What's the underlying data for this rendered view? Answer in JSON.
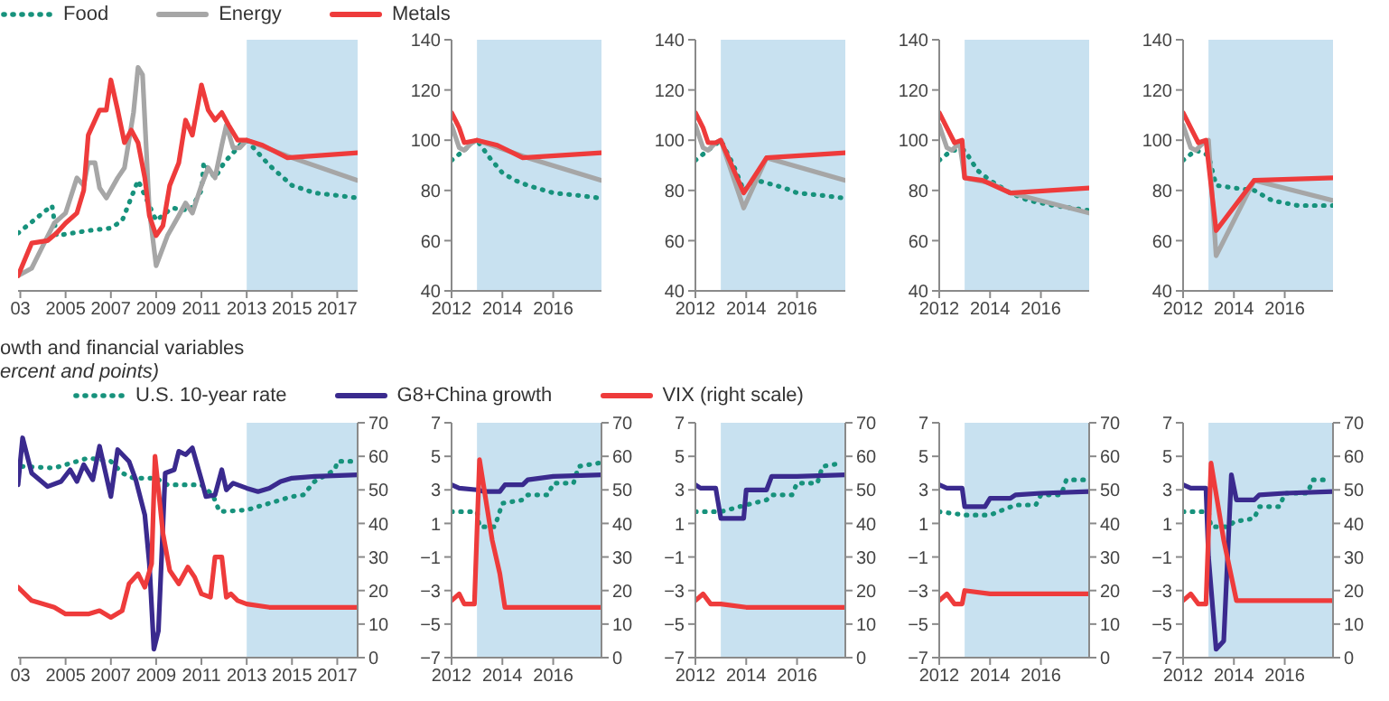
{
  "chart_data": [
    {
      "type": "line",
      "legend": "top",
      "marker": "none",
      "tick_labels": "x",
      "xlim": [
        2002.9,
        2017.9
      ],
      "xticks": [
        {
          "value": 2003,
          "label": "03"
        },
        2005,
        2007,
        2009,
        2011,
        2013,
        2015,
        2017
      ],
      "ylim": [
        40,
        140
      ],
      "bands": [
        {
          "axis": "x",
          "from": 2013,
          "to": 2017.9,
          "color": "#c8e1f0"
        }
      ],
      "series": [
        {
          "name": "Food",
          "color": "#17927c",
          "line_style": "dotted",
          "x": [
            2002.9,
            2004.4,
            2004.6,
            2006,
            2007,
            2007.5,
            2008.2,
            2009,
            2009.7,
            2010.5,
            2011,
            2011.1,
            2011.6,
            2012,
            2012.8,
            2013,
            2014,
            2015,
            2016,
            2017,
            2017.9
          ],
          "values": [
            63,
            74,
            62,
            64,
            65,
            68,
            84,
            68,
            73,
            72,
            80,
            91,
            85,
            91,
            99,
            100,
            90,
            82,
            79,
            78,
            77
          ]
        },
        {
          "name": "Energy",
          "color": "#a6a6a6",
          "line_style": "solid",
          "x": [
            2002.9,
            2003.5,
            2004,
            2004.5,
            2005,
            2005.5,
            2005.8,
            2006,
            2006.3,
            2006.5,
            2006.8,
            2007.3,
            2007.6,
            2008,
            2008.2,
            2008.4,
            2008.7,
            2009,
            2009.5,
            2010,
            2010.3,
            2010.6,
            2011,
            2011.3,
            2011.6,
            2011.9,
            2012.1,
            2012.4,
            2012.7,
            2013,
            2015,
            2017.9
          ],
          "values": [
            46,
            49,
            58,
            67,
            71,
            85,
            82,
            91,
            91,
            81,
            77,
            85,
            89,
            111,
            129,
            126,
            72,
            50,
            62,
            70,
            75,
            71,
            82,
            89,
            85,
            98,
            106,
            97,
            97,
            100,
            93,
            84
          ]
        },
        {
          "name": "Metals",
          "color": "#ee3b3b",
          "line_style": "solid",
          "x": [
            2002.9,
            2003.5,
            2004.2,
            2004.6,
            2005,
            2005.5,
            2005.8,
            2006,
            2006.5,
            2006.8,
            2007,
            2007.3,
            2007.6,
            2007.9,
            2008.2,
            2008.5,
            2008.7,
            2009,
            2009.3,
            2009.6,
            2010,
            2010.3,
            2010.6,
            2011,
            2011.3,
            2011.6,
            2011.9,
            2012.2,
            2012.6,
            2013,
            2013.7,
            2014.8,
            2017.9
          ],
          "values": [
            46,
            59,
            60,
            63,
            67,
            71,
            80,
            102,
            112,
            112,
            124,
            112,
            99,
            104,
            99,
            85,
            70,
            62,
            66,
            82,
            91,
            108,
            102,
            122,
            112,
            108,
            111,
            106,
            100,
            100,
            98,
            93,
            95
          ]
        }
      ]
    },
    {
      "type": "line",
      "marker": "none",
      "xlim": [
        2012,
        2017.9
      ],
      "xticks": [
        2012,
        2014,
        2016
      ],
      "ylim": [
        40,
        140
      ],
      "yticks": [
        40,
        60,
        80,
        100,
        120,
        140
      ],
      "bands": [
        {
          "axis": "x",
          "from": 2013,
          "to": 2017.9,
          "color": "#c8e1f0"
        }
      ],
      "series": [
        {
          "color": "#17927c",
          "line_style": "dotted",
          "x": [
            2012,
            2012.5,
            2012.8,
            2013,
            2013.5,
            2014,
            2014.5,
            2015,
            2016,
            2017,
            2017.8
          ],
          "values": [
            92,
            96,
            99,
            100,
            93,
            87,
            84,
            82,
            79,
            78,
            77
          ]
        },
        {
          "color": "#a6a6a6",
          "line_style": "solid",
          "x": [
            2012,
            2012.3,
            2012.5,
            2012.8,
            2013,
            2015,
            2017.9
          ],
          "values": [
            106,
            97,
            96,
            99,
            100,
            93,
            84
          ]
        },
        {
          "color": "#ee3b3b",
          "line_style": "solid",
          "x": [
            2012,
            2012.3,
            2012.5,
            2013,
            2013.8,
            2014.8,
            2017.9
          ],
          "values": [
            111,
            105,
            99,
            100,
            98,
            93,
            95
          ]
        }
      ]
    },
    {
      "type": "line",
      "marker": "none",
      "xlim": [
        2012,
        2017.9
      ],
      "xticks": [
        2012,
        2014,
        2016
      ],
      "ylim": [
        40,
        140
      ],
      "yticks": [
        40,
        60,
        80,
        100,
        120,
        140
      ],
      "bands": [
        {
          "axis": "x",
          "from": 2013,
          "to": 2017.9,
          "color": "#c8e1f0"
        }
      ],
      "series": [
        {
          "color": "#17927c",
          "line_style": "dotted",
          "x": [
            2012,
            2012.5,
            2013,
            2013.5,
            2013.9,
            2014.4,
            2014.8,
            2015.5,
            2016,
            2017,
            2017.8
          ],
          "values": [
            92,
            96,
            100,
            90,
            80,
            84,
            83,
            81,
            79,
            78,
            77
          ]
        },
        {
          "color": "#a6a6a6",
          "line_style": "solid",
          "x": [
            2012,
            2012.3,
            2012.5,
            2012.8,
            2013,
            2013.9,
            2014.8,
            2017.9
          ],
          "values": [
            106,
            97,
            96,
            99,
            100,
            73,
            93,
            84
          ]
        },
        {
          "color": "#ee3b3b",
          "line_style": "solid",
          "x": [
            2012,
            2012.3,
            2012.5,
            2012.8,
            2013,
            2013.9,
            2014.8,
            2017.9
          ],
          "values": [
            111,
            105,
            99,
            99,
            100,
            79,
            93,
            95
          ]
        }
      ]
    },
    {
      "type": "line",
      "marker": "none",
      "xlim": [
        2012,
        2017.9
      ],
      "xticks": [
        2012,
        2014,
        2016
      ],
      "ylim": [
        40,
        140
      ],
      "yticks": [
        40,
        60,
        80,
        100,
        120,
        140
      ],
      "bands": [
        {
          "axis": "x",
          "from": 2013,
          "to": 2017.9,
          "color": "#c8e1f0"
        }
      ],
      "series": [
        {
          "color": "#17927c",
          "line_style": "dotted",
          "x": [
            2012,
            2012.5,
            2013,
            2013.5,
            2014,
            2014.8,
            2015.5,
            2016.5,
            2017.9
          ],
          "values": [
            92,
            96,
            96,
            88,
            84,
            79,
            76,
            74,
            72
          ]
        },
        {
          "color": "#a6a6a6",
          "line_style": "solid",
          "x": [
            2012,
            2012.3,
            2012.5,
            2012.8,
            2013,
            2014,
            2014.8,
            2017.9
          ],
          "values": [
            106,
            97,
            96,
            99,
            85,
            83,
            79,
            71
          ]
        },
        {
          "color": "#ee3b3b",
          "line_style": "solid",
          "x": [
            2012,
            2012.3,
            2012.6,
            2012.9,
            2013,
            2013.7,
            2014.8,
            2017.9
          ],
          "values": [
            111,
            105,
            99,
            100,
            85,
            84,
            79,
            81
          ]
        }
      ]
    },
    {
      "type": "line",
      "marker": "none",
      "xlim": [
        2012,
        2017.9
      ],
      "xticks": [
        2012,
        2014,
        2016
      ],
      "ylim": [
        40,
        140
      ],
      "yticks": [
        40,
        60,
        80,
        100,
        120,
        140
      ],
      "bands": [
        {
          "axis": "x",
          "from": 2013,
          "to": 2017.9,
          "color": "#c8e1f0"
        }
      ],
      "series": [
        {
          "color": "#17927c",
          "line_style": "dotted",
          "x": [
            2012,
            2012.5,
            2013,
            2013.3,
            2014,
            2014.8,
            2015.5,
            2016.5,
            2017.9
          ],
          "values": [
            92,
            96,
            94,
            82,
            81,
            80,
            76,
            74,
            74
          ]
        },
        {
          "color": "#a6a6a6",
          "line_style": "solid",
          "x": [
            2012,
            2012.3,
            2012.5,
            2012.8,
            2013,
            2013.3,
            2014.8,
            2017.9
          ],
          "values": [
            106,
            97,
            96,
            99,
            100,
            54,
            84,
            76
          ]
        },
        {
          "color": "#ee3b3b",
          "line_style": "solid",
          "x": [
            2012,
            2012.3,
            2012.6,
            2012.9,
            2013.3,
            2014.8,
            2017.9
          ],
          "values": [
            111,
            105,
            99,
            100,
            64,
            84,
            85
          ]
        }
      ]
    },
    {
      "type": "line",
      "title": "owth and financial variables",
      "subtitle": "ercent and points)",
      "legend": "top",
      "marker": "none",
      "tick_labels": [
        "x",
        "y2"
      ],
      "xlim": [
        2002.9,
        2017.9
      ],
      "xticks": [
        {
          "value": 2003,
          "label": "03"
        },
        2005,
        2007,
        2009,
        2011,
        2013,
        2015,
        2017
      ],
      "ylim": [
        -7,
        7
      ],
      "y2lim": [
        0,
        70
      ],
      "y2ticks": [
        0,
        10,
        20,
        30,
        40,
        50,
        60,
        70
      ],
      "bands": [
        {
          "axis": "x",
          "from": 2013,
          "to": 2017.9,
          "color": "#c8e1f0"
        }
      ],
      "series": [
        {
          "name": "U.S. 10-year rate",
          "color": "#17927c",
          "line_style": "dotted",
          "x": [
            2002.9,
            2003,
            2004.5,
            2006,
            2007,
            2007.5,
            2008,
            2009,
            2009.5,
            2011,
            2011.5,
            2011.8,
            2013,
            2014,
            2015,
            2015.5,
            2016,
            2016.9,
            2017,
            2017.8
          ],
          "values": [
            4.0,
            4.4,
            4.3,
            4.9,
            4.7,
            4.0,
            3.7,
            3.7,
            3.3,
            3.3,
            2.7,
            1.7,
            1.8,
            2.2,
            2.6,
            2.7,
            3.5,
            4.2,
            4.7,
            4.7
          ]
        },
        {
          "name": "G8+China growth",
          "color": "#3a2a8e",
          "line_style": "solid",
          "x": [
            2002.9,
            2003.1,
            2003.5,
            2004.2,
            2004.8,
            2005.2,
            2005.5,
            2005.8,
            2006.2,
            2006.5,
            2007,
            2007.3,
            2007.8,
            2008.1,
            2008.5,
            2008.7,
            2008.9,
            2009.1,
            2009.4,
            2009.8,
            2010,
            2010.3,
            2010.6,
            2011,
            2011.2,
            2011.6,
            2011.9,
            2012.1,
            2012.4,
            2013,
            2013.5,
            2014,
            2014.5,
            2015,
            2016,
            2017.9
          ],
          "values": [
            3.3,
            6.1,
            4.0,
            3.2,
            3.5,
            4.2,
            3.5,
            4.5,
            3.6,
            5.6,
            2.6,
            5.4,
            4.7,
            3.6,
            1.5,
            -1.4,
            -6.5,
            -5.4,
            4.0,
            4.2,
            5.3,
            5.1,
            5.5,
            3.6,
            2.6,
            2.7,
            4.2,
            3.0,
            3.4,
            3.1,
            2.9,
            3.1,
            3.5,
            3.7,
            3.8,
            3.9
          ]
        },
        {
          "name": "VIX (right scale)",
          "color": "#ee3b3b",
          "line_style": "solid",
          "axis": "y2",
          "x": [
            2002.9,
            2003.5,
            2004.5,
            2005,
            2006,
            2006.5,
            2007,
            2007.5,
            2007.8,
            2008.2,
            2008.5,
            2008.8,
            2008.95,
            2009.3,
            2009.6,
            2010,
            2010.4,
            2010.7,
            2011,
            2011.4,
            2011.6,
            2011.9,
            2012.1,
            2012.3,
            2012.6,
            2013,
            2014,
            2017.9
          ],
          "values": [
            21,
            17,
            15,
            13,
            13,
            14,
            12,
            14,
            22,
            25,
            21,
            28,
            60,
            37,
            26,
            22,
            27,
            24,
            19,
            18,
            30,
            30,
            18,
            19,
            17,
            16,
            15,
            15
          ]
        }
      ]
    },
    {
      "type": "line",
      "marker": "none",
      "xlim": [
        2012,
        2017.9
      ],
      "xticks": [
        2012,
        2014,
        2016
      ],
      "ylim": [
        -7,
        7
      ],
      "yticks": [
        {
          "value": -7,
          "label": "−7"
        },
        {
          "value": -5,
          "label": "−5"
        },
        {
          "value": -3,
          "label": "−3"
        },
        {
          "value": -1,
          "label": "−1"
        },
        1,
        3,
        5,
        7
      ],
      "y2lim": [
        0,
        70
      ],
      "y2ticks": [
        0,
        10,
        20,
        30,
        40,
        50,
        60,
        70
      ],
      "bands": [
        {
          "axis": "x",
          "from": 2013,
          "to": 2017.9,
          "color": "#c8e1f0"
        }
      ],
      "series": [
        {
          "color": "#17927c",
          "line_style": "dotted",
          "x": [
            2012,
            2013,
            2013.1,
            2013.7,
            2014,
            2014.8,
            2015,
            2015.8,
            2016,
            2016.8,
            2017,
            2017.8
          ],
          "values": [
            1.7,
            1.7,
            0.8,
            0.8,
            2.2,
            2.4,
            2.7,
            2.7,
            3.4,
            3.4,
            4.4,
            4.6
          ]
        },
        {
          "color": "#3a2a8e",
          "line_style": "solid",
          "x": [
            2012,
            2012.3,
            2013,
            2013.3,
            2013.9,
            2014.1,
            2014.8,
            2015,
            2016,
            2017.9
          ],
          "values": [
            3.3,
            3.1,
            3.0,
            2.9,
            2.9,
            3.3,
            3.3,
            3.6,
            3.8,
            3.9
          ]
        },
        {
          "color": "#ee3b3b",
          "line_style": "solid",
          "axis": "y2",
          "x": [
            2012,
            2012.3,
            2012.5,
            2012.9,
            2013.1,
            2013.6,
            2013.9,
            2014.1,
            2017.9
          ],
          "values": [
            17,
            19,
            16,
            16,
            59,
            35,
            25,
            15,
            15
          ]
        }
      ]
    },
    {
      "type": "line",
      "marker": "none",
      "xlim": [
        2012,
        2017.9
      ],
      "xticks": [
        2012,
        2014,
        2016
      ],
      "ylim": [
        -7,
        7
      ],
      "yticks": [
        {
          "value": -7,
          "label": "−7"
        },
        {
          "value": -5,
          "label": "−5"
        },
        {
          "value": -3,
          "label": "−3"
        },
        {
          "value": -1,
          "label": "−1"
        },
        1,
        3,
        5,
        7
      ],
      "y2lim": [
        0,
        70
      ],
      "y2ticks": [
        0,
        10,
        20,
        30,
        40,
        50,
        60,
        70
      ],
      "bands": [
        {
          "axis": "x",
          "from": 2013,
          "to": 2017.9,
          "color": "#c8e1f0"
        }
      ],
      "series": [
        {
          "color": "#17927c",
          "line_style": "dotted",
          "x": [
            2012,
            2013,
            2014,
            2014.8,
            2015,
            2015.8,
            2016,
            2016.8,
            2017,
            2017.8
          ],
          "values": [
            1.7,
            1.7,
            2.1,
            2.4,
            2.7,
            2.7,
            3.4,
            3.4,
            4.4,
            4.6
          ]
        },
        {
          "color": "#3a2a8e",
          "line_style": "solid",
          "x": [
            2012,
            2012.2,
            2012.8,
            2013,
            2013.9,
            2014,
            2014.8,
            2015,
            2016,
            2017.9
          ],
          "values": [
            3.3,
            3.1,
            3.1,
            1.3,
            1.3,
            3.0,
            3.0,
            3.8,
            3.8,
            3.9
          ]
        },
        {
          "color": "#ee3b3b",
          "line_style": "solid",
          "axis": "y2",
          "x": [
            2012,
            2012.3,
            2012.6,
            2013,
            2014,
            2017.9
          ],
          "values": [
            17,
            19,
            16,
            16,
            15,
            15
          ]
        }
      ]
    },
    {
      "type": "line",
      "marker": "none",
      "xlim": [
        2012,
        2017.9
      ],
      "xticks": [
        2012,
        2014,
        2016
      ],
      "ylim": [
        -7,
        7
      ],
      "yticks": [
        {
          "value": -7,
          "label": "−7"
        },
        {
          "value": -5,
          "label": "−5"
        },
        {
          "value": -3,
          "label": "−3"
        },
        {
          "value": -1,
          "label": "−1"
        },
        1,
        3,
        5,
        7
      ],
      "y2lim": [
        0,
        70
      ],
      "y2ticks": [
        0,
        10,
        20,
        30,
        40,
        50,
        60,
        70
      ],
      "bands": [
        {
          "axis": "x",
          "from": 2013,
          "to": 2017.9,
          "color": "#c8e1f0"
        }
      ],
      "series": [
        {
          "color": "#17927c",
          "line_style": "dotted",
          "x": [
            2012,
            2013,
            2014,
            2014.5,
            2015,
            2015.8,
            2016,
            2016.8,
            2017,
            2017.8
          ],
          "values": [
            1.7,
            1.5,
            1.5,
            1.8,
            2.1,
            2.1,
            2.7,
            2.7,
            3.6,
            3.6
          ]
        },
        {
          "color": "#3a2a8e",
          "line_style": "solid",
          "x": [
            2012,
            2012.3,
            2012.9,
            2013,
            2013.8,
            2014,
            2014.8,
            2015,
            2016,
            2017.9
          ],
          "values": [
            3.3,
            3.1,
            3.1,
            2.0,
            2.0,
            2.5,
            2.5,
            2.7,
            2.8,
            2.9
          ]
        },
        {
          "color": "#ee3b3b",
          "line_style": "solid",
          "axis": "y2",
          "x": [
            2012,
            2012.3,
            2012.6,
            2012.9,
            2013,
            2014,
            2017.9
          ],
          "values": [
            17,
            19,
            16,
            16,
            20,
            19,
            19
          ]
        }
      ]
    },
    {
      "type": "line",
      "marker": "none",
      "xlim": [
        2012,
        2017.9
      ],
      "xticks": [
        2012,
        2014,
        2016
      ],
      "ylim": [
        -7,
        7
      ],
      "yticks": [
        {
          "value": -7,
          "label": "−7"
        },
        {
          "value": -5,
          "label": "−5"
        },
        {
          "value": -3,
          "label": "−3"
        },
        {
          "value": -1,
          "label": "−1"
        },
        1,
        3,
        5,
        7
      ],
      "y2lim": [
        0,
        70
      ],
      "y2ticks": [
        0,
        10,
        20,
        30,
        40,
        50,
        60,
        70
      ],
      "bands": [
        {
          "axis": "x",
          "from": 2013,
          "to": 2017.9,
          "color": "#c8e1f0"
        }
      ],
      "series": [
        {
          "color": "#17927c",
          "line_style": "dotted",
          "x": [
            2012,
            2013,
            2013.1,
            2013.8,
            2014,
            2014.8,
            2015,
            2015.8,
            2016,
            2016.9,
            2017.1,
            2017.8
          ],
          "values": [
            1.7,
            1.7,
            0.8,
            0.8,
            1.1,
            1.3,
            2.0,
            2.0,
            2.8,
            2.8,
            3.6,
            3.6
          ]
        },
        {
          "color": "#3a2a8e",
          "line_style": "solid",
          "x": [
            2012,
            2012.3,
            2012.9,
            2013,
            2013.3,
            2013.6,
            2013.9,
            2014.1,
            2014.8,
            2015,
            2016,
            2017.9
          ],
          "values": [
            3.3,
            3.1,
            3.1,
            -1,
            -6.5,
            -6,
            3.9,
            2.4,
            2.4,
            2.7,
            2.8,
            2.9
          ]
        },
        {
          "color": "#ee3b3b",
          "line_style": "solid",
          "axis": "y2",
          "x": [
            2012,
            2012.3,
            2012.6,
            2012.9,
            2013.1,
            2013.6,
            2014.1,
            2017.9
          ],
          "values": [
            17,
            19,
            16,
            16,
            58,
            35,
            17,
            17
          ]
        }
      ]
    }
  ]
}
